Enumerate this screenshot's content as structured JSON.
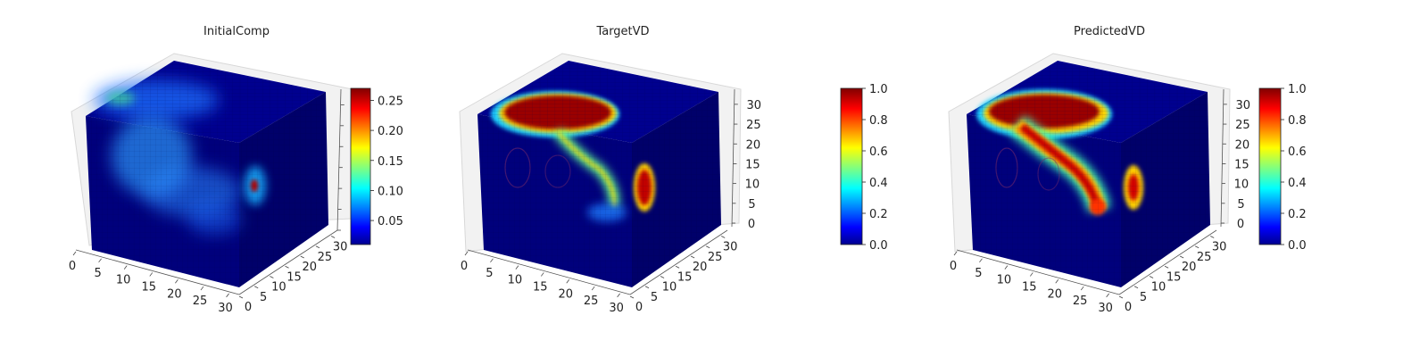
{
  "chart_data": [
    {
      "type": "voxel-3d",
      "title": "InitialComp",
      "axis_range": [
        0,
        32
      ],
      "x_ticks": [
        "0",
        "5",
        "10",
        "15",
        "20",
        "25",
        "30"
      ],
      "y_ticks": [
        "0",
        "5",
        "10",
        "15",
        "20",
        "25",
        "30"
      ],
      "z_ticks": [],
      "colormap": "jet",
      "colorbar": {
        "min": 0.01,
        "max": 0.27,
        "ticks": [
          "0.05",
          "0.10",
          "0.15",
          "0.20",
          "0.25"
        ],
        "tick_values": [
          0.05,
          0.1,
          0.15,
          0.2,
          0.25
        ]
      },
      "grid": true
    },
    {
      "type": "voxel-3d",
      "title": "TargetVD",
      "axis_range": [
        0,
        32
      ],
      "x_ticks": [
        "0",
        "5",
        "10",
        "15",
        "20",
        "25",
        "30"
      ],
      "y_ticks": [
        "0",
        "5",
        "10",
        "15",
        "20",
        "25",
        "30"
      ],
      "z_ticks": [
        "0",
        "5",
        "10",
        "15",
        "20",
        "25",
        "30"
      ],
      "colormap": "jet",
      "colorbar": {
        "min": 0.0,
        "max": 1.0,
        "ticks": [
          "0.0",
          "0.2",
          "0.4",
          "0.6",
          "0.8",
          "1.0"
        ],
        "tick_values": [
          0,
          0.2,
          0.4,
          0.6,
          0.8,
          1.0
        ]
      },
      "grid": true
    },
    {
      "type": "voxel-3d",
      "title": "PredictedVD",
      "axis_range": [
        0,
        32
      ],
      "x_ticks": [
        "0",
        "5",
        "10",
        "15",
        "20",
        "25",
        "30"
      ],
      "y_ticks": [
        "0",
        "5",
        "10",
        "15",
        "20",
        "25",
        "30"
      ],
      "z_ticks": [
        "0",
        "5",
        "10",
        "15",
        "20",
        "25",
        "30"
      ],
      "colormap": "jet",
      "colorbar": {
        "min": 0.0,
        "max": 1.0,
        "ticks": [
          "0.0",
          "0.2",
          "0.4",
          "0.6",
          "0.8",
          "1.0"
        ],
        "tick_values": [
          0,
          0.2,
          0.4,
          0.6,
          0.8,
          1.0
        ]
      },
      "grid": true
    }
  ],
  "colors": {
    "jet_dark_blue": "#00008f",
    "jet_blue": "#0000ff",
    "jet_cyan": "#00ffff",
    "jet_yellow": "#ffff00",
    "jet_red": "#ff0000",
    "jet_dark_red": "#800000",
    "cube_base": "#00006e"
  }
}
